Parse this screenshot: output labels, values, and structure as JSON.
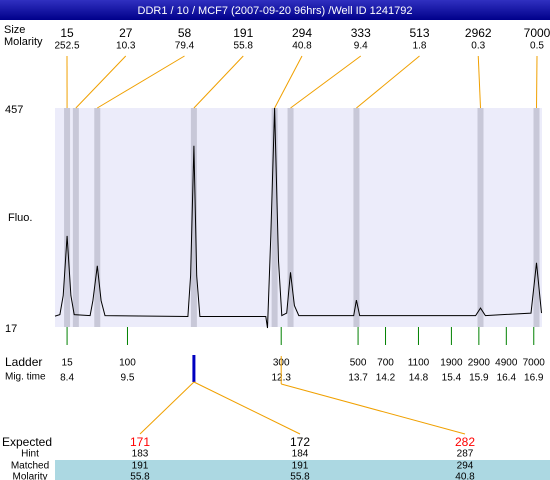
{
  "title": "DDR1 / 10 / MCF7 (2007-09-20 96hrs) /Well ID 1241792",
  "chart_data": {
    "type": "line",
    "ylabel": "Fluo.",
    "x": [
      8.18,
      8.27,
      8.33,
      8.4,
      8.47,
      8.53,
      8.82,
      8.87,
      8.95,
      9.02,
      9.09,
      10.6,
      10.65,
      10.71,
      10.76,
      10.82,
      12.02,
      12.05,
      12.11,
      12.18,
      12.25,
      12.31,
      12.4,
      12.47,
      12.54,
      12.62,
      13.62,
      13.67,
      13.73,
      15.84,
      15.93,
      16.02,
      16.85,
      16.95,
      17.04
    ],
    "values": [
      39,
      42,
      80,
      200,
      80,
      42,
      40,
      70,
      140,
      70,
      40,
      38,
      120,
      381,
      120,
      38,
      38,
      15,
      200,
      457,
      150,
      40,
      45,
      127,
      60,
      40,
      40,
      71,
      40,
      40,
      55,
      40,
      45,
      146,
      45
    ],
    "color": "#000000",
    "plot_color": "#ececfa",
    "band_color": "#c8c8d8",
    "xlim": [
      8.18,
      17.05
    ],
    "ylim": [
      17,
      457
    ],
    "yticks": [
      17,
      457
    ],
    "peaks": {
      "size_label": "Size",
      "molarity_label": "Molarity",
      "times": [
        8.4,
        8.56,
        8.95,
        10.71,
        12.18,
        12.47,
        13.67,
        15.93,
        16.95
      ],
      "sizes": [
        15,
        27,
        58,
        191,
        294,
        333,
        513,
        2962,
        7000
      ],
      "molarity": [
        252.5,
        10.3,
        79.4,
        55.8,
        40.8,
        9.4,
        1.8,
        0.3,
        0.5
      ]
    },
    "ladder": {
      "label": "Ladder",
      "time_label": "Mig. time",
      "sizes": [
        15,
        100,
        300,
        500,
        700,
        1100,
        1900,
        2900,
        4900,
        7000
      ],
      "times": [
        8.4,
        9.5,
        12.3,
        13.7,
        14.2,
        14.8,
        15.4,
        15.9,
        16.4,
        16.9
      ]
    }
  },
  "expected": {
    "row_labels": [
      "Expected",
      "Hint",
      "Matched",
      "Molarity"
    ],
    "expected": [
      171,
      172,
      282
    ],
    "expected_colors": [
      "#ff0000",
      "#000000",
      "#ff0000"
    ],
    "hint": [
      183,
      184,
      287
    ],
    "matched": [
      191,
      191,
      294
    ],
    "molarity": [
      55.8,
      55.8,
      40.8
    ]
  }
}
